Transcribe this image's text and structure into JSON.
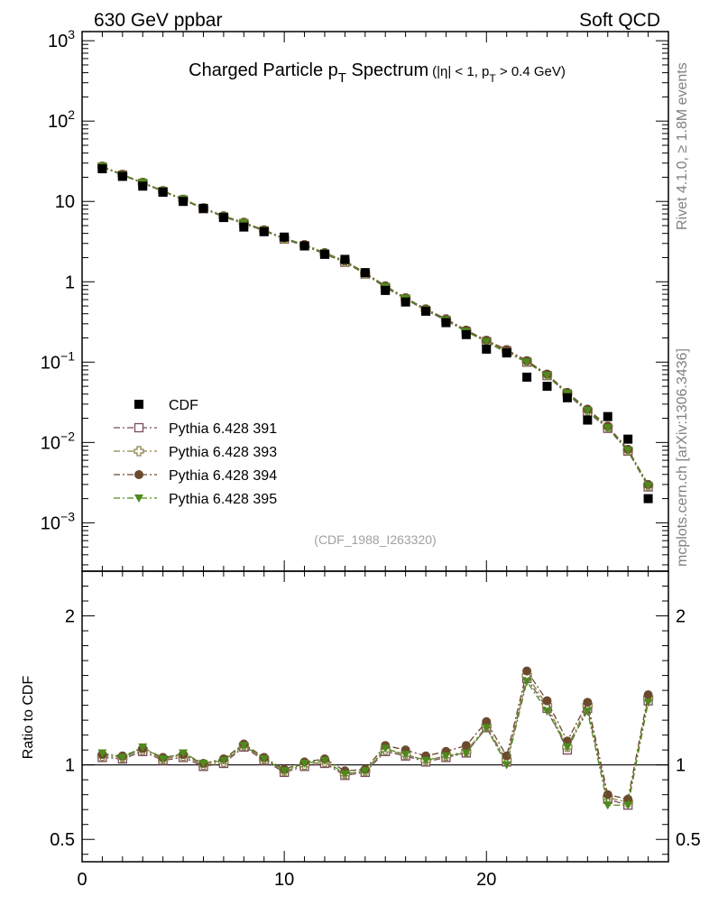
{
  "header": {
    "left": "630 GeV ppbar",
    "right": "Soft QCD"
  },
  "side_notes": {
    "rivet": "Rivet 4.1.0, ≥ 1.8M events",
    "mcplots": "mcplots.cern.ch [arXiv:1306.3436]"
  },
  "analysis_tag": "(CDF_1988_I263320)",
  "chart_data": {
    "type": "scatter",
    "title": {
      "main_prefix": "Charged Particle p",
      "main_sub": "T",
      "main_suffix": " Spectrum",
      "cut_prefix": "(|η| < 1, p",
      "cut_sub": "T",
      "cut_suffix": " > 0.4 GeV)"
    },
    "x": [
      1,
      2,
      3,
      4,
      5,
      6,
      7,
      8,
      9,
      10,
      11,
      12,
      13,
      14,
      15,
      16,
      17,
      18,
      19,
      20,
      21,
      22,
      23,
      24,
      25,
      26,
      27,
      28
    ],
    "xlim": [
      0,
      29
    ],
    "x_ticks": [
      0,
      10,
      20
    ],
    "main": {
      "yscale": "log",
      "ylim": [
        0.00025,
        1300
      ],
      "y_ticks": [
        {
          "value": 1000,
          "base": "10",
          "exp": "3"
        },
        {
          "value": 100,
          "base": "10",
          "exp": "2"
        },
        {
          "value": 10,
          "base": "10",
          "exp": ""
        },
        {
          "value": 1,
          "base": "1",
          "exp": ""
        },
        {
          "value": 0.1,
          "base": "10",
          "exp": "−1"
        },
        {
          "value": 0.01,
          "base": "10",
          "exp": "−2"
        },
        {
          "value": 0.001,
          "base": "10",
          "exp": "−3"
        }
      ]
    },
    "ratio": {
      "ylabel": "Ratio to CDF",
      "yscale": "linear",
      "ylim": [
        0.35,
        2.3
      ],
      "y_ticks": [
        0.5,
        1,
        2
      ],
      "y_tick_labels": [
        "0.5",
        "1",
        "2"
      ],
      "reference_line": 1
    },
    "series": [
      {
        "name": "CDF",
        "color": "#000000",
        "marker": "square-filled",
        "line": "none",
        "values": [
          25.5,
          20.5,
          15.5,
          13,
          10,
          8.2,
          6.3,
          4.8,
          4.2,
          3.6,
          2.8,
          2.2,
          1.9,
          1.3,
          0.78,
          0.56,
          0.43,
          0.31,
          0.22,
          0.145,
          0.13,
          0.065,
          0.05,
          0.036,
          0.019,
          0.021,
          0.011,
          0.002
        ],
        "ratio": [
          1,
          1,
          1,
          1,
          1,
          1,
          1,
          1,
          1,
          1,
          1,
          1,
          1,
          1,
          1,
          1,
          1,
          1,
          1,
          1,
          1,
          1,
          1,
          1,
          1,
          1,
          1,
          1
        ]
      },
      {
        "name": "Pythia 6.428 391",
        "color": "#7a4a5c",
        "marker": "square-open",
        "line": "dashdot",
        "values": [
          26.8,
          21.2,
          16.8,
          13.3,
          10.4,
          8.1,
          6.4,
          5.3,
          4.3,
          3.4,
          2.8,
          2.2,
          1.75,
          1.25,
          0.85,
          0.61,
          0.44,
          0.33,
          0.24,
          0.18,
          0.138,
          0.1,
          0.068,
          0.04,
          0.024,
          0.015,
          0.0078,
          0.0028
        ],
        "ratio": [
          1.05,
          1.04,
          1.09,
          1.03,
          1.05,
          0.99,
          1.01,
          1.12,
          1.03,
          0.95,
          0.99,
          1.01,
          0.93,
          0.95,
          1.09,
          1.06,
          1.02,
          1.05,
          1.08,
          1.25,
          1.02,
          1.58,
          1.38,
          1.1,
          1.38,
          0.77,
          0.73,
          1.43
        ]
      },
      {
        "name": "Pythia 6.428 393",
        "color": "#8c8448",
        "marker": "cross-open",
        "line": "dashdot",
        "values": [
          27.0,
          21.4,
          17.0,
          13.4,
          10.5,
          8.2,
          6.5,
          5.4,
          4.35,
          3.45,
          2.85,
          2.25,
          1.78,
          1.27,
          0.87,
          0.62,
          0.45,
          0.34,
          0.245,
          0.183,
          0.14,
          0.102,
          0.069,
          0.041,
          0.025,
          0.0155,
          0.008,
          0.0029
        ],
        "ratio": [
          1.06,
          1.05,
          1.1,
          1.04,
          1.06,
          1.0,
          1.02,
          1.13,
          1.04,
          0.96,
          1.0,
          1.02,
          0.94,
          0.96,
          1.1,
          1.07,
          1.03,
          1.06,
          1.09,
          1.26,
          1.03,
          1.6,
          1.4,
          1.12,
          1.4,
          0.78,
          0.75,
          1.45
        ]
      },
      {
        "name": "Pythia 6.428 394",
        "color": "#6b4a2e",
        "marker": "circle-filled",
        "line": "dashdot",
        "values": [
          27.3,
          21.6,
          17.2,
          13.6,
          10.6,
          8.3,
          6.6,
          5.5,
          4.4,
          3.5,
          2.9,
          2.3,
          1.82,
          1.3,
          0.89,
          0.63,
          0.46,
          0.345,
          0.25,
          0.187,
          0.143,
          0.104,
          0.071,
          0.042,
          0.026,
          0.016,
          0.0082,
          0.003
        ],
        "ratio": [
          1.07,
          1.06,
          1.11,
          1.05,
          1.07,
          1.01,
          1.04,
          1.14,
          1.05,
          0.97,
          1.02,
          1.04,
          0.96,
          0.97,
          1.13,
          1.1,
          1.06,
          1.09,
          1.13,
          1.29,
          1.06,
          1.63,
          1.43,
          1.16,
          1.42,
          0.8,
          0.77,
          1.47
        ]
      },
      {
        "name": "Pythia 6.428 395",
        "color": "#4f8a1e",
        "marker": "triangle-down-filled",
        "line": "dashdot",
        "values": [
          27.5,
          21.3,
          17.3,
          13.5,
          10.7,
          8.3,
          6.55,
          5.45,
          4.35,
          3.45,
          2.85,
          2.28,
          1.79,
          1.27,
          0.87,
          0.62,
          0.45,
          0.335,
          0.24,
          0.18,
          0.13,
          0.1,
          0.068,
          0.041,
          0.025,
          0.0152,
          0.008,
          0.0029
        ],
        "ratio": [
          1.08,
          1.05,
          1.12,
          1.04,
          1.08,
          1.01,
          1.03,
          1.13,
          1.04,
          0.96,
          1.01,
          1.03,
          0.94,
          0.96,
          1.11,
          1.07,
          1.03,
          1.06,
          1.08,
          1.25,
          1.0,
          1.56,
          1.36,
          1.12,
          1.36,
          0.73,
          0.73,
          1.42
        ]
      }
    ],
    "legend": {
      "placement": "bottom-left"
    }
  }
}
